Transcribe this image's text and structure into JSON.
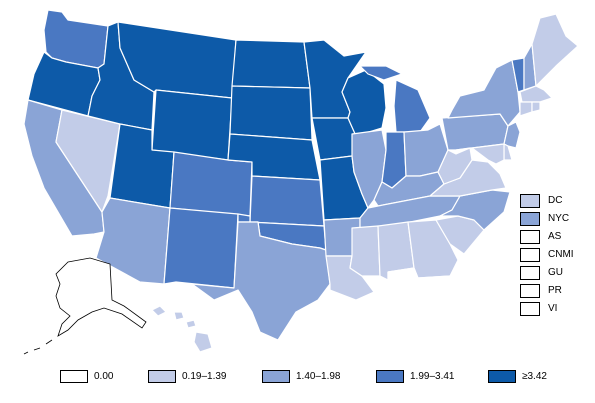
{
  "colors": {
    "c0": "#ffffff",
    "c1": "#c2cce8",
    "c2": "#8aa4d6",
    "c3": "#4a78c2",
    "c4": "#0d5aa8"
  },
  "legend": [
    {
      "label": "0.00",
      "color_key": "c0"
    },
    {
      "label": "0.19–1.39",
      "color_key": "c1"
    },
    {
      "label": "1.40–1.98",
      "color_key": "c2"
    },
    {
      "label": "1.99–3.41",
      "color_key": "c3"
    },
    {
      "label": "≥3.42",
      "color_key": "c4"
    }
  ],
  "territories": [
    {
      "label": "DC",
      "color_key": "c1"
    },
    {
      "label": "NYC",
      "color_key": "c2"
    },
    {
      "label": "AS",
      "color_key": "c0"
    },
    {
      "label": "CNMI",
      "color_key": "c0"
    },
    {
      "label": "GU",
      "color_key": "c0"
    },
    {
      "label": "PR",
      "color_key": "c0"
    },
    {
      "label": "VI",
      "color_key": "c0"
    }
  ],
  "states": {
    "WA": "c3",
    "OR": "c4",
    "CA": "c2",
    "NV": "c1",
    "ID": "c4",
    "MT": "c4",
    "WY": "c4",
    "UT": "c4",
    "AZ": "c2",
    "CO": "c3",
    "NM": "c3",
    "ND": "c4",
    "SD": "c4",
    "NE": "c4",
    "KS": "c3",
    "OK": "c3",
    "TX": "c2",
    "MN": "c4",
    "IA": "c4",
    "MO": "c4",
    "AR": "c2",
    "LA": "c1",
    "WI": "c4",
    "IL": "c2",
    "MI": "c3",
    "IN": "c3",
    "OH": "c2",
    "KY": "c2",
    "TN": "c2",
    "MS": "c1",
    "AL": "c1",
    "GA": "c1",
    "FL": "c0",
    "SC": "c1",
    "NC": "c2",
    "VA": "c1",
    "WV": "c1",
    "PA": "c2",
    "NY": "c2",
    "VT": "c3",
    "NH": "c2",
    "ME": "c1",
    "MA": "c1",
    "CT": "c1",
    "RI": "c1",
    "NJ": "c2",
    "DE": "c1",
    "MD": "c1",
    "HI": "c1",
    "AK": "c0"
  }
}
